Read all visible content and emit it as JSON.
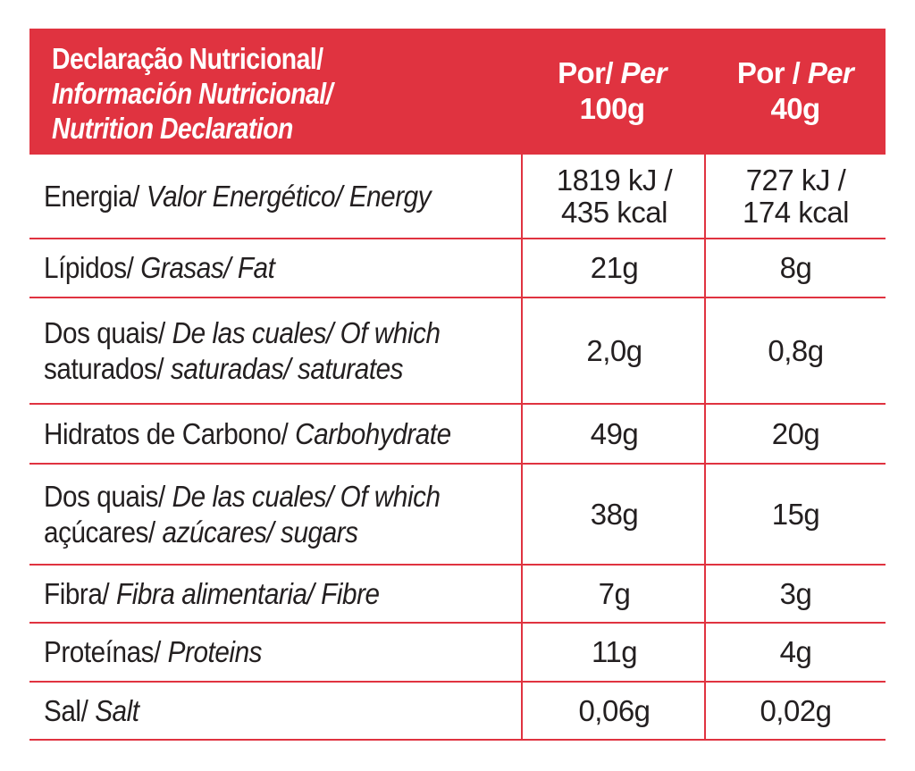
{
  "header": {
    "title_pt": "Declaração Nutricional/",
    "title_es": "Información Nutricional/",
    "title_en": "Nutrition Declaration",
    "col1_a": "Por/ ",
    "col1_a_it": "Per",
    "col1_b": "100g",
    "col2_a": "Por / ",
    "col2_a_it": "Per",
    "col2_b": "40g"
  },
  "rows": [
    {
      "label_plain": "Energia/ ",
      "label_italic": "Valor Energético/ Energy",
      "label2_plain": "",
      "label2_italic": "",
      "v1_line1": "1819 kJ /",
      "v1_line2": "435 kcal",
      "v2_line1": "727 kJ /",
      "v2_line2": "174 kcal"
    },
    {
      "label_plain": "Lípidos/ ",
      "label_italic": "Grasas/ Fat",
      "v1": "21g",
      "v2": "8g"
    },
    {
      "label_plain": "Dos quais/ ",
      "label_italic": "De las cuales/ Of which",
      "label2_plain": "saturados/ ",
      "label2_italic": "saturadas/ saturates",
      "v1": "2,0g",
      "v2": "0,8g"
    },
    {
      "label_plain": "Hidratos de Carbono/ ",
      "label_italic": "Carbohydrate",
      "v1": "49g",
      "v2": "20g"
    },
    {
      "label_plain": "Dos quais/ ",
      "label_italic": "De las cuales/ Of which",
      "label2_plain": "açúcares/ ",
      "label2_italic": "azúcares/ sugars",
      "v1": "38g",
      "v2": "15g"
    },
    {
      "label_plain": "Fibra/ ",
      "label_italic": "Fibra alimentaria/ Fibre",
      "v1": "7g",
      "v2": "3g"
    },
    {
      "label_plain": "Proteínas/ ",
      "label_italic": "Proteins",
      "v1": "11g",
      "v2": "4g"
    },
    {
      "label_plain": "Sal/ ",
      "label_italic": "Salt",
      "v1": "0,06g",
      "v2": "0,02g"
    }
  ],
  "colors": {
    "accent": "#e03340",
    "text": "#231f20",
    "header_text": "#ffffff"
  }
}
